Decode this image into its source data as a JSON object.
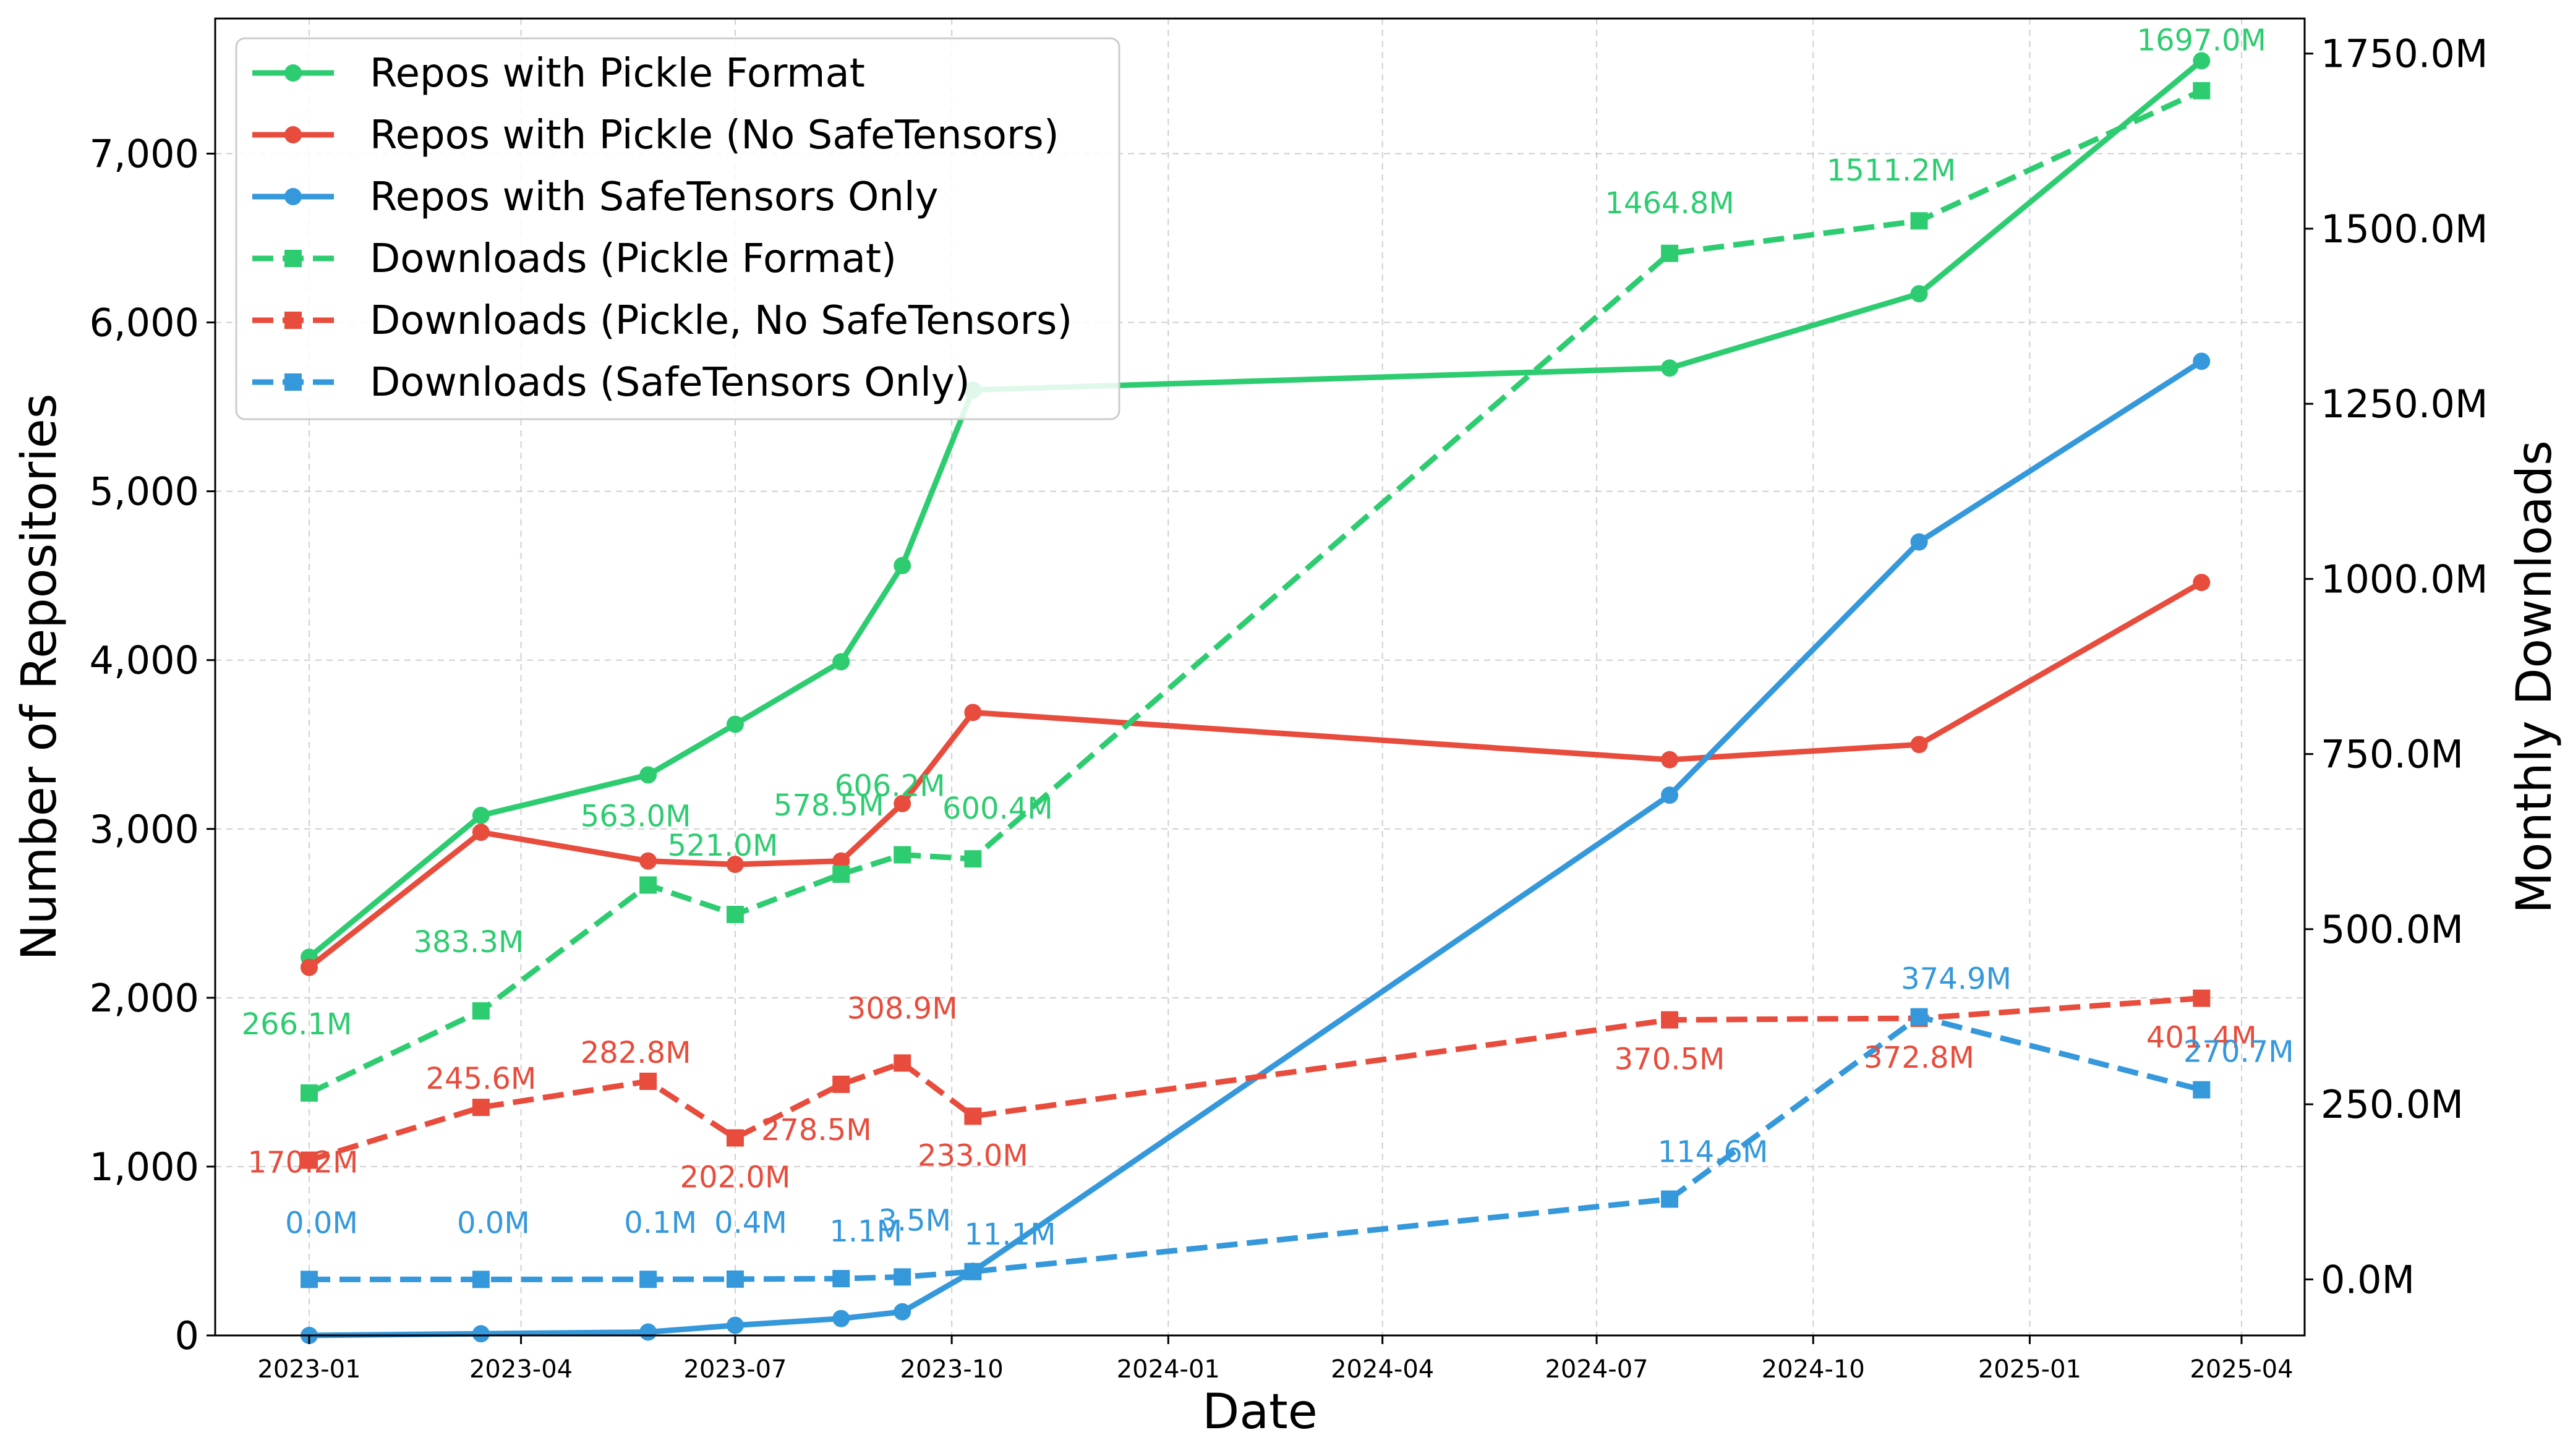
{
  "chart_data": {
    "type": "line",
    "xlabel": "Date",
    "ylabel_left": "Number of Repositories",
    "ylabel_right": "Monthly Downloads",
    "x_ticks": [
      "2023-01",
      "2023-04",
      "2023-07",
      "2023-10",
      "2024-01",
      "2024-04",
      "2024-07",
      "2024-10",
      "2025-01",
      "2025-04"
    ],
    "y_left_ticks": [
      "0",
      "1,000",
      "2,000",
      "3,000",
      "4,000",
      "5,000",
      "6,000",
      "7,000"
    ],
    "y_right_ticks": [
      "0.0M",
      "250.0M",
      "500.0M",
      "750.0M",
      "1000.0M",
      "1250.0M",
      "1500.0M",
      "1750.0M"
    ],
    "ylim_left": [
      0,
      7800
    ],
    "ylim_right": [
      -80,
      1800
    ],
    "grid": true,
    "legend_position": "top-left",
    "colors": {
      "green": "#2ecc71",
      "red": "#e74c3c",
      "blue": "#3498db"
    },
    "repo_dates": [
      "2023-01-01",
      "2023-03-15",
      "2023-05-25",
      "2023-07-01",
      "2023-08-15",
      "2023-09-10",
      "2023-10-10",
      "2024-08-01",
      "2024-11-15",
      "2025-03-15"
    ],
    "download_dates": [
      "2023-01-01",
      "2023-03-15",
      "2023-05-25",
      "2023-07-01",
      "2023-08-15",
      "2023-09-10",
      "2023-10-10",
      "2024-08-01",
      "2024-11-15",
      "2025-03-15"
    ],
    "series": [
      {
        "name": "Repos with Pickle Format",
        "axis": "left",
        "style": "solid",
        "marker": "circle",
        "color": "#2ecc71",
        "values": [
          2240,
          3080,
          3320,
          3620,
          3990,
          4560,
          5600,
          5730,
          6170,
          7550
        ]
      },
      {
        "name": "Repos with Pickle (No SafeTensors)",
        "axis": "left",
        "style": "solid",
        "marker": "circle",
        "color": "#e74c3c",
        "values": [
          2180,
          2980,
          2810,
          2790,
          2810,
          3150,
          3690,
          3410,
          3500,
          4460
        ]
      },
      {
        "name": "Repos with SafeTensors Only",
        "axis": "left",
        "style": "solid",
        "marker": "circle",
        "color": "#3498db",
        "values": [
          0,
          10,
          20,
          60,
          100,
          140,
          380,
          3200,
          4700,
          5770
        ]
      },
      {
        "name": "Downloads (Pickle Format)",
        "axis": "right",
        "style": "dashed",
        "marker": "square",
        "color": "#2ecc71",
        "values": [
          266.1,
          383.3,
          563.0,
          521.0,
          578.5,
          606.2,
          600.4,
          1464.8,
          1511.2,
          1697.0
        ],
        "labels": [
          "266.1M",
          "383.3M",
          "563.0M",
          "521.0M",
          "578.5M",
          "606.2M",
          "600.4M",
          "1464.8M",
          "1511.2M",
          "1697.0M"
        ]
      },
      {
        "name": "Downloads (Pickle, No SafeTensors)",
        "axis": "right",
        "style": "dashed",
        "marker": "square",
        "color": "#e74c3c",
        "values": [
          170.2,
          245.6,
          282.8,
          202.0,
          278.5,
          308.9,
          233.0,
          370.5,
          372.8,
          401.4
        ],
        "labels": [
          "170.2M",
          "245.6M",
          "282.8M",
          "202.0M",
          "278.5M",
          "308.9M",
          "233.0M",
          "370.5M",
          "372.8M",
          "401.4M"
        ]
      },
      {
        "name": "Downloads (SafeTensors Only)",
        "axis": "right",
        "style": "dashed",
        "marker": "square",
        "color": "#3498db",
        "values": [
          0.0,
          0.0,
          0.1,
          0.4,
          1.1,
          3.5,
          11.1,
          114.6,
          374.9,
          270.7
        ],
        "labels": [
          "0.0M",
          "0.0M",
          "0.1M",
          "0.4M",
          "1.1M",
          "3.5M",
          "11.1M",
          "114.6M",
          "374.9M",
          "270.7M"
        ]
      }
    ]
  }
}
